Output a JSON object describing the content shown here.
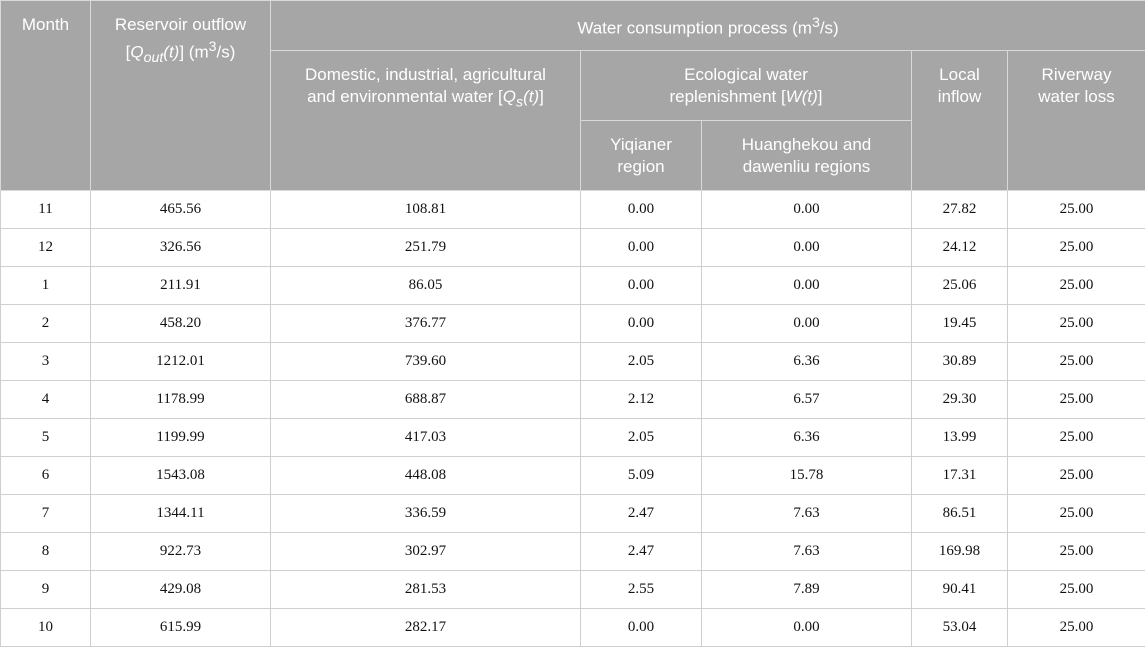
{
  "headers": {
    "month": "Month",
    "reservoir_line1": "Reservoir outflow",
    "reservoir_sym": "Q",
    "reservoir_sub": "out",
    "reservoir_arg": "(t)",
    "reservoir_unit": "(m",
    "reservoir_unit_sup": "3",
    "reservoir_unit_end": "/s)",
    "consumption": "Water consumption process (m",
    "consumption_sup": "3",
    "consumption_end": "/s)",
    "domestic_line1": "Domestic, industrial, agricultural",
    "domestic_line2": "and environmental water",
    "domestic_sym": "Q",
    "domestic_sub": "s",
    "domestic_arg": "(t)",
    "eco_line1": "Ecological water",
    "eco_line2": "replenishment",
    "eco_sym": "W(t)",
    "yiqianer_line1": "Yiqianer",
    "yiqianer_line2": "region",
    "huanghekou_line1": "Huanghekou and",
    "huanghekou_line2": "dawenliu regions",
    "local_line1": "Local",
    "local_line2": "inflow",
    "loss_line1": "Riverway",
    "loss_line2": "water loss"
  },
  "rows": [
    {
      "month": "11",
      "reservoir": "465.56",
      "domestic": "108.81",
      "yiqianer": "0.00",
      "huanghekou": "0.00",
      "local": "27.82",
      "loss": "25.00"
    },
    {
      "month": "12",
      "reservoir": "326.56",
      "domestic": "251.79",
      "yiqianer": "0.00",
      "huanghekou": "0.00",
      "local": "24.12",
      "loss": "25.00"
    },
    {
      "month": "1",
      "reservoir": "211.91",
      "domestic": "86.05",
      "yiqianer": "0.00",
      "huanghekou": "0.00",
      "local": "25.06",
      "loss": "25.00"
    },
    {
      "month": "2",
      "reservoir": "458.20",
      "domestic": "376.77",
      "yiqianer": "0.00",
      "huanghekou": "0.00",
      "local": "19.45",
      "loss": "25.00"
    },
    {
      "month": "3",
      "reservoir": "1212.01",
      "domestic": "739.60",
      "yiqianer": "2.05",
      "huanghekou": "6.36",
      "local": "30.89",
      "loss": "25.00"
    },
    {
      "month": "4",
      "reservoir": "1178.99",
      "domestic": "688.87",
      "yiqianer": "2.12",
      "huanghekou": "6.57",
      "local": "29.30",
      "loss": "25.00"
    },
    {
      "month": "5",
      "reservoir": "1199.99",
      "domestic": "417.03",
      "yiqianer": "2.05",
      "huanghekou": "6.36",
      "local": "13.99",
      "loss": "25.00"
    },
    {
      "month": "6",
      "reservoir": "1543.08",
      "domestic": "448.08",
      "yiqianer": "5.09",
      "huanghekou": "15.78",
      "local": "17.31",
      "loss": "25.00"
    },
    {
      "month": "7",
      "reservoir": "1344.11",
      "domestic": "336.59",
      "yiqianer": "2.47",
      "huanghekou": "7.63",
      "local": "86.51",
      "loss": "25.00"
    },
    {
      "month": "8",
      "reservoir": "922.73",
      "domestic": "302.97",
      "yiqianer": "2.47",
      "huanghekou": "7.63",
      "local": "169.98",
      "loss": "25.00"
    },
    {
      "month": "9",
      "reservoir": "429.08",
      "domestic": "281.53",
      "yiqianer": "2.55",
      "huanghekou": "7.89",
      "local": "90.41",
      "loss": "25.00"
    },
    {
      "month": "10",
      "reservoir": "615.99",
      "domestic": "282.17",
      "yiqianer": "0.00",
      "huanghekou": "0.00",
      "local": "53.04",
      "loss": "25.00"
    }
  ]
}
